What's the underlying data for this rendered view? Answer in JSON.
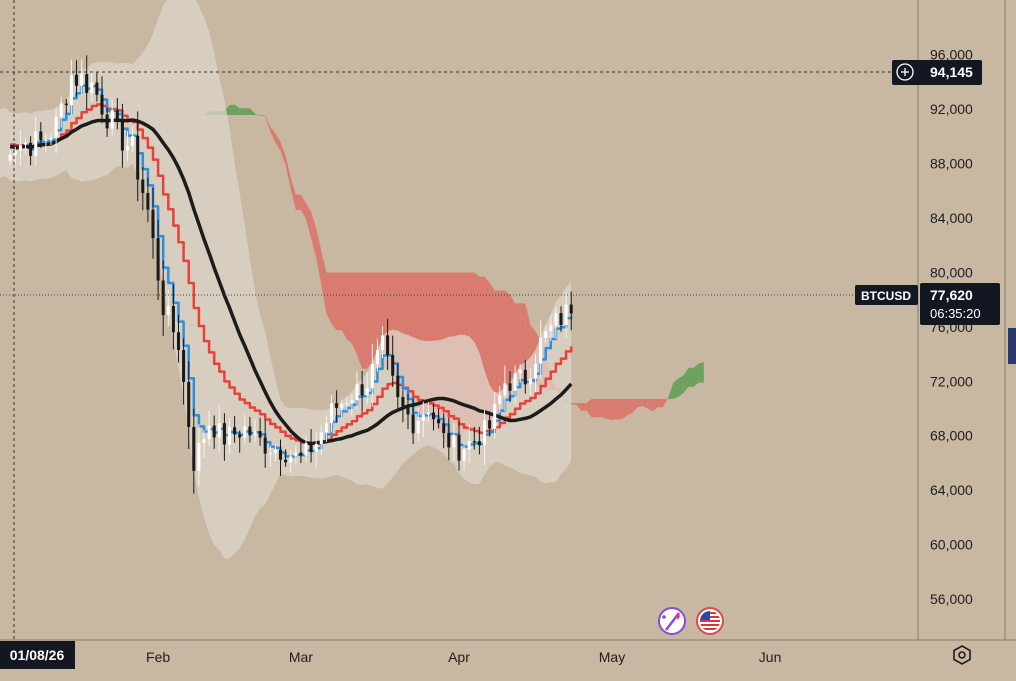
{
  "chart_data": {
    "type": "candlestick",
    "symbol": "BTCUSD",
    "last_price": "77,620",
    "countdown": "06:35:20",
    "crosshair_price": "94,145",
    "crosshair_date": "01/08/26",
    "y_ticks": [
      "96,000",
      "92,000",
      "88,000",
      "84,000",
      "80,000",
      "76,000",
      "72,000",
      "68,000",
      "64,000",
      "60,000",
      "56,000"
    ],
    "x_ticks": [
      "Feb",
      "Mar",
      "Apr",
      "May",
      "Jun"
    ],
    "ylim": [
      53000,
      100000
    ],
    "x_range_days": [
      -8,
      172
    ],
    "indicators": [
      "Ichimoku cloud",
      "Bollinger bands",
      "EMA fast (blue)",
      "EMA medium (red)",
      "SMA slow (black)"
    ],
    "colors": {
      "background": "#c8b8a1",
      "bull_candle": "#ffffff",
      "bear_candle": "#1a1a1a",
      "cloud_bear": "#e0675f",
      "cloud_bull": "#4f9a48",
      "band_fill": "#ddd5c9",
      "fast_line": "#2d8fe0",
      "medium_line": "#e8413a",
      "slow_line": "#1c1c1a"
    }
  },
  "icons": [
    "spark-icon",
    "us-flag-icon",
    "settings-icon",
    "add-alert-icon"
  ]
}
